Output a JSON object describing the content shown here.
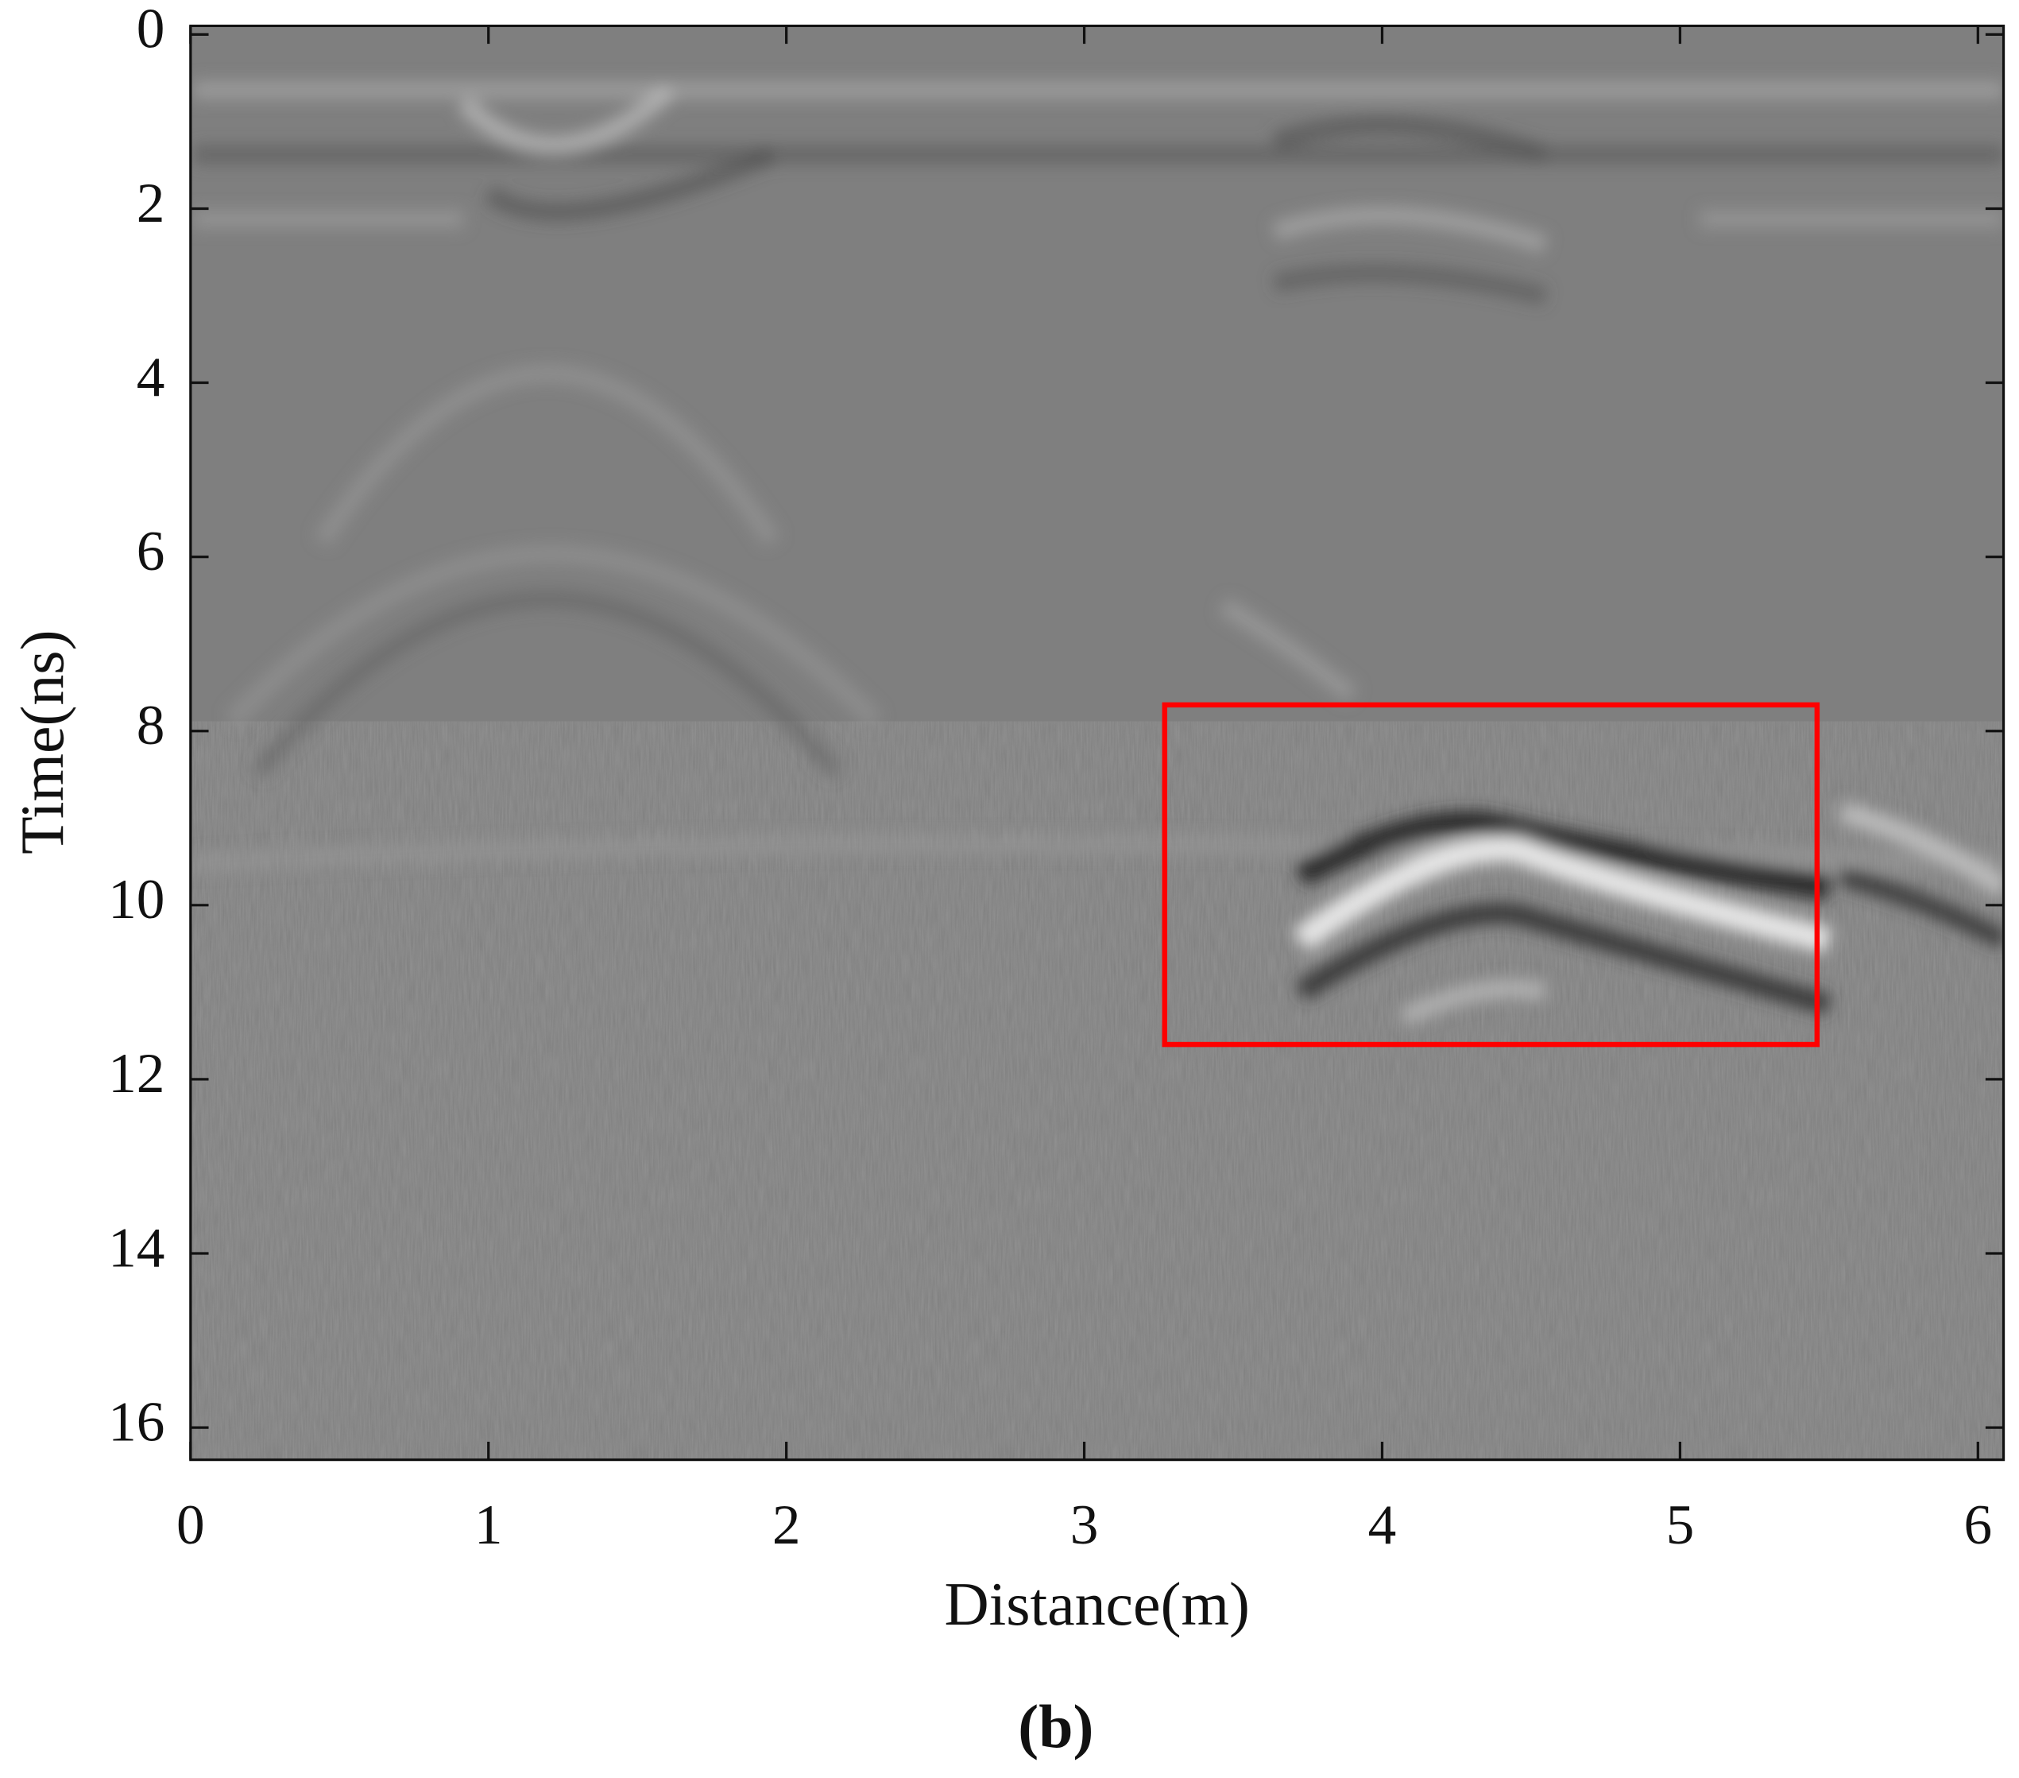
{
  "chart_data": {
    "type": "image",
    "xlabel": "Distance(m)",
    "ylabel": "Time(ns)",
    "caption": "(b)",
    "xlim": [
      0,
      6.086
    ],
    "ylim": [
      -0.1,
      16.37
    ],
    "y_inverted": true,
    "xticks": [
      0,
      1,
      2,
      3,
      4,
      5,
      6
    ],
    "yticks": [
      0,
      2,
      4,
      6,
      8,
      10,
      12,
      14,
      16
    ],
    "annotations": [
      {
        "x": [
          3.27,
          5.46
        ],
        "y": [
          7.7,
          11.6
        ],
        "color": "#ff0000"
      }
    ]
  }
}
